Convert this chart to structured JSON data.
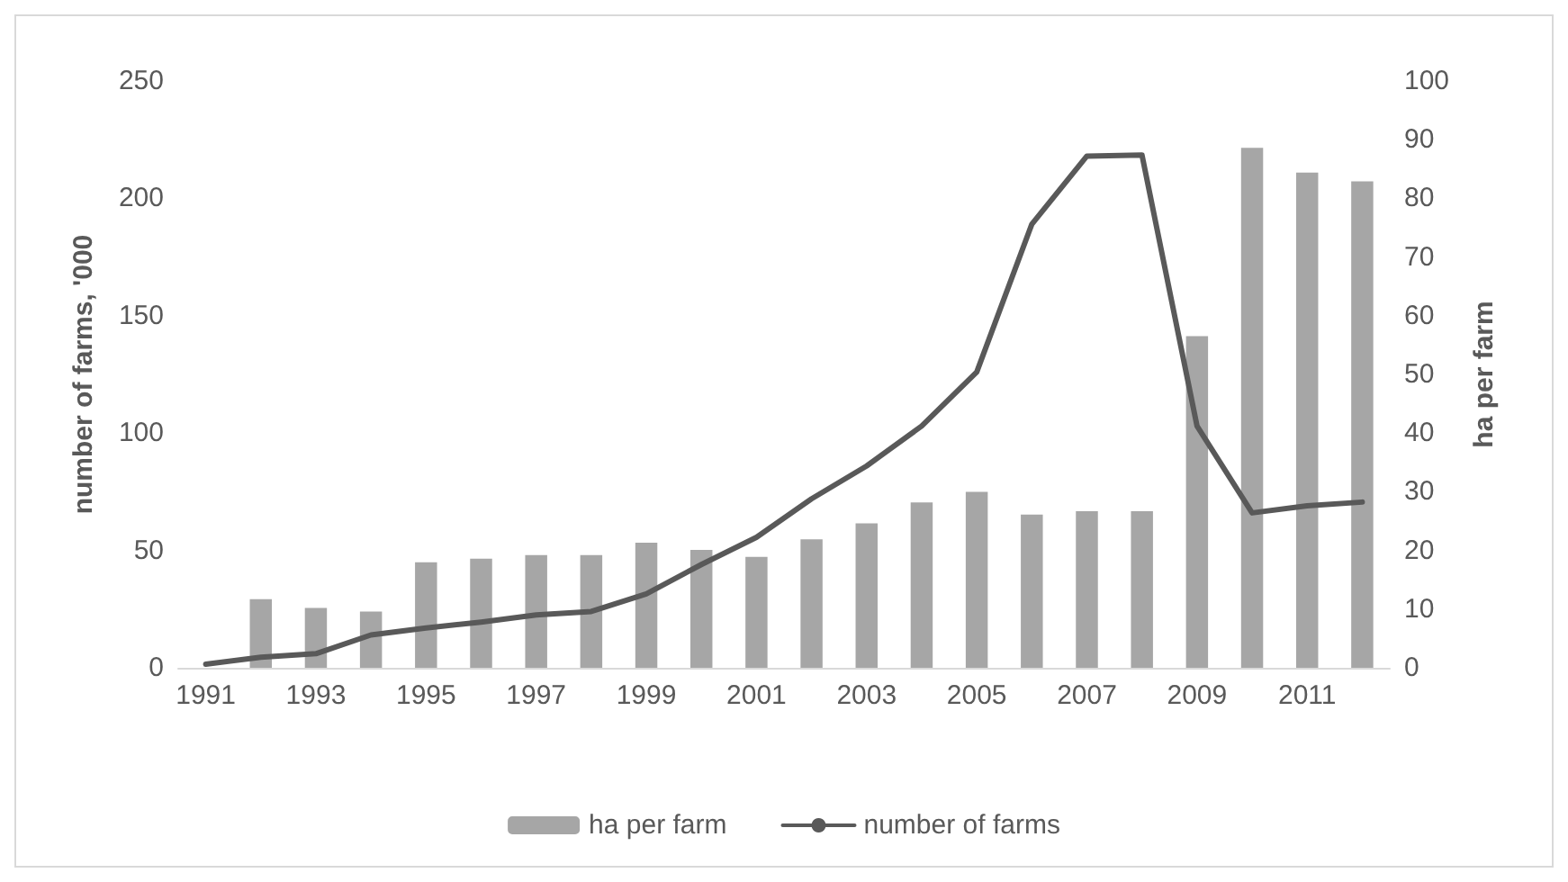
{
  "chart_data": {
    "type": "bar",
    "categories": [
      "1991",
      null,
      "1993",
      null,
      "1995",
      null,
      "1997",
      null,
      "1999",
      null,
      "2001",
      null,
      "2003",
      null,
      "2005",
      null,
      "2007",
      null,
      "2009",
      null,
      "2011",
      null
    ],
    "ylabel": "number of farms, '000",
    "y2label": "ha per farm",
    "ylim": [
      0,
      250
    ],
    "yticks": [
      0,
      50,
      100,
      150,
      200,
      250
    ],
    "y2lim": [
      0,
      100
    ],
    "y2ticks": [
      0,
      10,
      20,
      30,
      40,
      50,
      60,
      70,
      80,
      90,
      100
    ],
    "series": [
      {
        "name": "ha per farm",
        "axis": "y2",
        "color": "#a6a6a6",
        "values": [
          null,
          11.7,
          10.2,
          9.6,
          18,
          18.6,
          19.2,
          19.2,
          21.3,
          20.1,
          18.9,
          21.9,
          24.6,
          28.2,
          30,
          26.1,
          26.7,
          26.7,
          56.5,
          88.6,
          84.4,
          82.9
        ]
      },
      {
        "name": "number of farms",
        "type": "line",
        "color": "#595959",
        "marker": "none",
        "values": [
          1.5,
          4.5,
          6,
          14,
          17,
          19.5,
          22.5,
          24,
          31.5,
          44,
          55.6,
          72,
          86,
          103,
          126,
          189,
          218,
          218.5,
          103,
          66,
          69,
          70.6
        ]
      }
    ],
    "legend": "bottom",
    "grid": false
  }
}
